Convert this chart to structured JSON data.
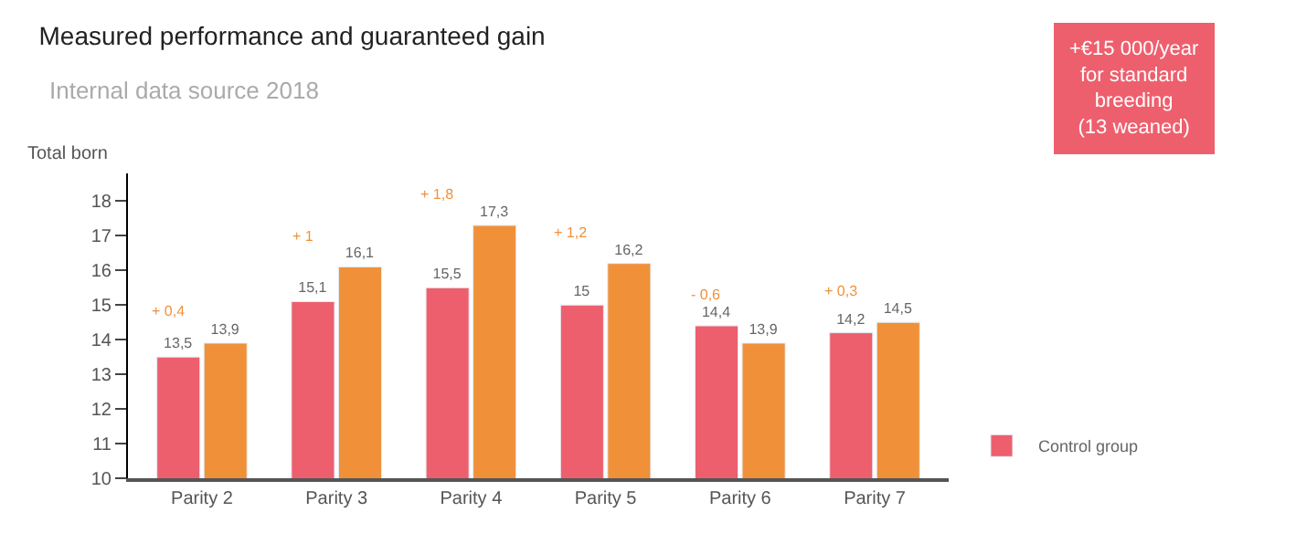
{
  "chart_data": {
    "type": "bar",
    "title": "Measured performance and guaranteed gain",
    "subtitle": "Internal data source 2018",
    "ylabel": "Total born",
    "categories": [
      "Parity 2",
      "Parity 3",
      "Parity 4",
      "Parity 5",
      "Parity 6",
      "Parity 7"
    ],
    "series": [
      {
        "name": "Control group",
        "color": "#ee5f6d",
        "values": [
          13.5,
          15.1,
          15.5,
          15,
          14.4,
          14.2
        ],
        "value_labels": [
          "13,5",
          "15,1",
          "15,5",
          "15",
          "14,4",
          "14,2"
        ]
      },
      {
        "color": "#f0913a",
        "values": [
          13.9,
          16.1,
          17.3,
          16.2,
          13.9,
          14.5
        ],
        "value_labels": [
          "13,9",
          "16,1",
          "17,3",
          "16,2",
          "13,9",
          "14,5"
        ]
      }
    ],
    "ylim": [
      10,
      18.8
    ],
    "yticks": [
      10,
      11,
      12,
      13,
      14,
      15,
      16,
      17,
      18
    ],
    "legend": "right",
    "annotations": [
      "+ 0,4",
      "+ 1",
      "+ 1,8",
      "+ 1,2",
      "- 0,6",
      "+ 0,3",
      "+€15 000/year\nfor standard\nbreeding\n(13 weaned)"
    ]
  }
}
